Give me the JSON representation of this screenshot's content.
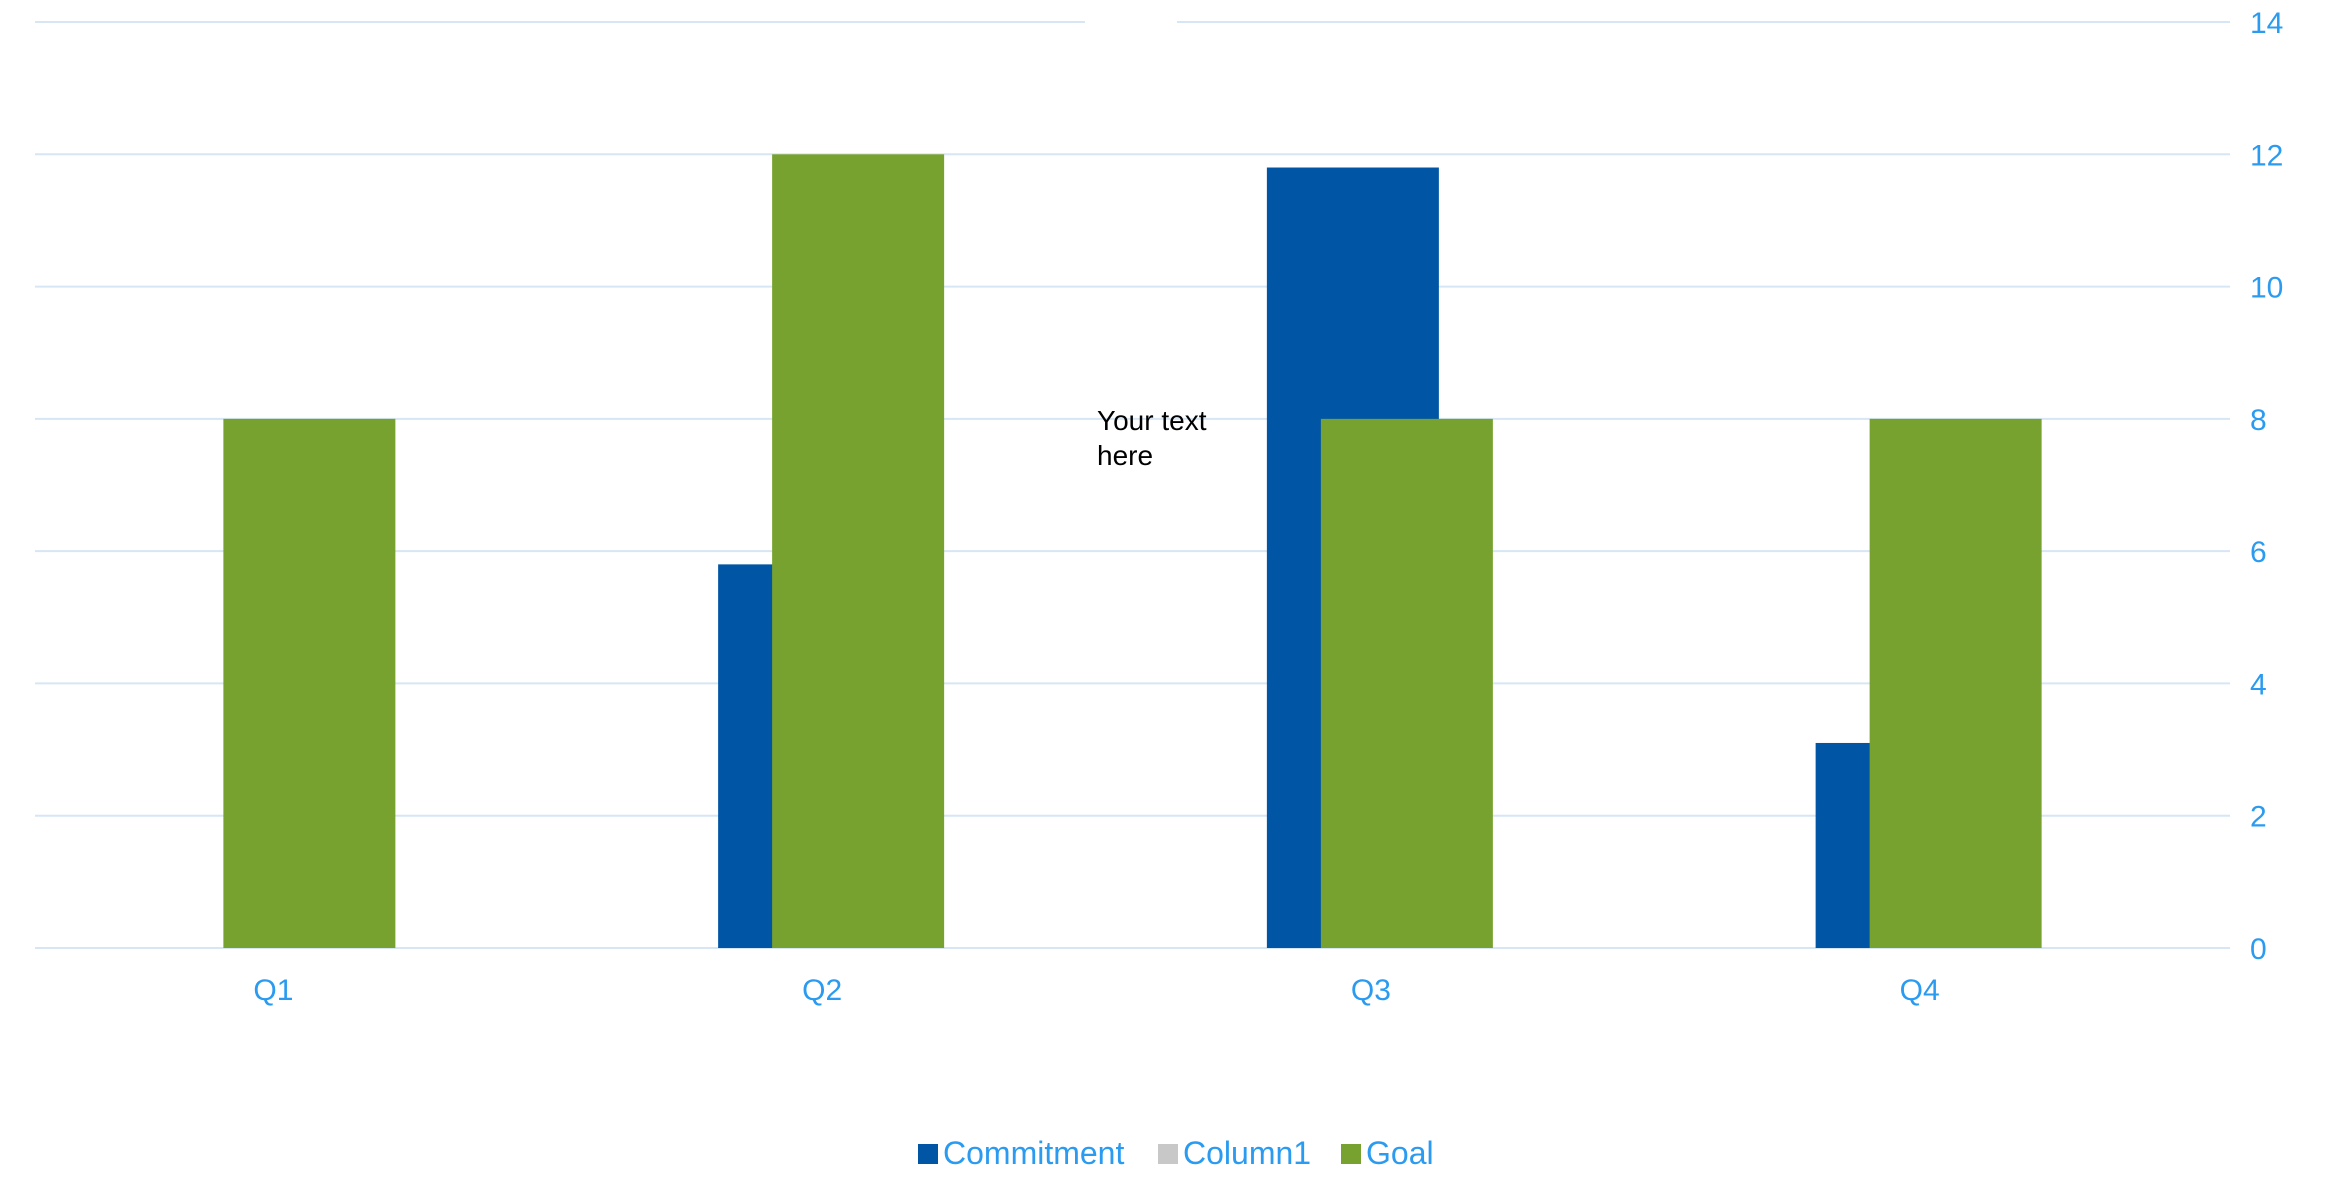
{
  "chart_data": {
    "type": "bar",
    "categories": [
      "Q1",
      "Q2",
      "Q3",
      "Q4"
    ],
    "series": [
      {
        "name": "Commitment",
        "values": [
          0,
          5.8,
          11.8,
          3.1
        ],
        "color": "#0055A5"
      },
      {
        "name": "Column1",
        "values": [
          0,
          0,
          0,
          0
        ],
        "color": "#C8C8C8"
      },
      {
        "name": "Goal",
        "values": [
          8,
          12,
          8,
          8
        ],
        "color": "#78A22F"
      }
    ],
    "ylim": [
      0,
      14
    ],
    "yticks": [
      0,
      2,
      4,
      6,
      8,
      10,
      12,
      14
    ],
    "y_axis_side": "right",
    "grid": true,
    "legend_position": "bottom",
    "annotation": {
      "lines": [
        "Your text",
        "here"
      ]
    },
    "colors": {
      "axis_text": "#2A9BF0",
      "gridline": "#D6E6F5"
    }
  }
}
